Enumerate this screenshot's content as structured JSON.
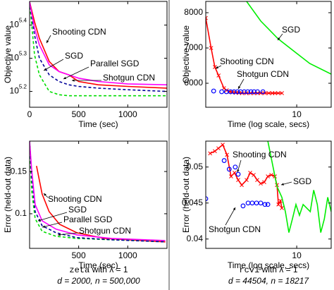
{
  "chart_data": [
    {
      "type": "line",
      "ylabel": "Objective value",
      "xlabel": "Time (sec)",
      "xlim": [
        0,
        1400
      ],
      "xticks": [
        0,
        500,
        1000
      ],
      "yscale": "log",
      "ylim": [
        142000,
        296000
      ],
      "yticks": [
        {
          "value": 158489,
          "label": "10^5.2"
        },
        {
          "value": 199526,
          "label": "10^5.3"
        },
        {
          "value": 251189,
          "label": "10^5.4"
        }
      ],
      "series": [
        {
          "name": "Shooting CDN",
          "color": "#ff0000",
          "x": [
            0,
            50,
            100,
            200,
            300,
            400,
            500,
            700,
            1000,
            1400
          ],
          "values": [
            295121,
            257040,
            229087,
            194984,
            181970,
            177828,
            169824,
            165959,
            164059,
            162181
          ]
        },
        {
          "name": "SGD",
          "color": "#00dd00",
          "linestyle": "dashed",
          "x": [
            0,
            50,
            100,
            200,
            300,
            400,
            500,
            700,
            1000,
            1400
          ],
          "values": [
            295121,
            204174,
            177828,
            158489,
            154882,
            153800,
            153800,
            153800,
            153800,
            153800
          ]
        },
        {
          "name": "Parallel SGD",
          "color": "#000099",
          "linestyle": "dashed",
          "x": [
            0,
            50,
            100,
            200,
            300,
            400,
            500,
            700,
            1000,
            1400
          ],
          "values": [
            295121,
            234423,
            199526,
            177828,
            169824,
            165959,
            164059,
            162181,
            160300,
            158489
          ]
        },
        {
          "name": "Shotgun CDN",
          "color": "#ff00ff",
          "x": [
            0,
            50,
            100,
            200,
            300,
            400,
            500,
            700,
            1000,
            1400
          ],
          "values": [
            295121,
            245471,
            218776,
            190546,
            181970,
            177828,
            173780,
            169824,
            167000,
            165959
          ]
        }
      ]
    },
    {
      "type": "line",
      "ylabel": "Objective value",
      "xlabel": "Time (log scale, secs)",
      "xscale": "log",
      "xlim": [
        2,
        18.4
      ],
      "xticks": [
        10
      ],
      "ylim": [
        5320,
        8320
      ],
      "yticks": [
        6000,
        7000,
        8000
      ],
      "series": [
        {
          "name": "Shooting CDN",
          "color": "#ff0000",
          "marker": "x",
          "x": [
            2,
            2.2,
            2.35,
            2.51,
            2.76,
            2.9,
            3.05,
            3.2,
            3.4,
            3.6,
            3.8,
            4.1,
            4.4,
            4.7,
            5.0,
            5.3,
            5.7,
            6.1,
            6.5,
            6.8,
            7.2,
            7.7
          ],
          "values": [
            7850,
            7000,
            6460,
            6220,
            5860,
            5800,
            5760,
            5740,
            5730,
            5725,
            5720,
            5720,
            5720,
            5720,
            5720,
            5720,
            5720,
            5720,
            5720,
            5720,
            5720,
            5720
          ]
        },
        {
          "name": "Shotgun CDN",
          "color": "#0000ff",
          "marker": "o",
          "line": false,
          "x": [
            2.3,
            2.65,
            2.88,
            3.1,
            3.3,
            3.5,
            3.7,
            3.95,
            4.2,
            4.45,
            4.7,
            5.0,
            5.5
          ],
          "values": [
            5780,
            5760,
            5760,
            5760,
            5760,
            5760,
            5760,
            5760,
            5760,
            5760,
            5760,
            5760,
            5760
          ]
        },
        {
          "name": "SGD",
          "color": "#00ee00",
          "x": [
            3.87,
            5.3,
            7.2,
            9.9,
            12.6,
            18.4
          ],
          "values": [
            8460,
            7760,
            7260,
            6860,
            6560,
            6260
          ]
        }
      ]
    },
    {
      "type": "line",
      "ylabel": "Error (held-out data)",
      "xlabel": "Time (sec)",
      "xlim": [
        0,
        1400
      ],
      "xticks": [
        500,
        1000
      ],
      "ylim": [
        0.059,
        0.186
      ],
      "yticks": [
        0.1,
        0.15
      ],
      "series": [
        {
          "name": "Shooting CDN",
          "color": "#ff0000",
          "x": [
            70,
            128,
            199,
            305,
            482,
            766,
            1383
          ],
          "values": [
            0.1567,
            0.1233,
            0.1025,
            0.0875,
            0.0775,
            0.0708,
            0.0667
          ]
        },
        {
          "name": "SGD",
          "color": "#00dd00",
          "linestyle": "dashed",
          "x": [
            0,
            21,
            57,
            128,
            270,
            482,
            837,
            1383
          ],
          "values": [
            0.1858,
            0.1275,
            0.0942,
            0.0792,
            0.0733,
            0.0708,
            0.0692,
            0.0675
          ]
        },
        {
          "name": "Parallel SGD",
          "color": "#000099",
          "linestyle": "dashed",
          "x": [
            0,
            21,
            57,
            128,
            270,
            482,
            837,
            1383
          ],
          "values": [
            0.1858,
            0.1442,
            0.1025,
            0.0858,
            0.0775,
            0.0717,
            0.0692,
            0.0667
          ]
        },
        {
          "name": "Shotgun CDN",
          "color": "#ff00ff",
          "x": [
            0,
            21,
            57,
            128,
            270,
            482,
            837,
            1383
          ],
          "values": [
            0.1858,
            0.1525,
            0.1108,
            0.0917,
            0.0817,
            0.075,
            0.0708,
            0.0683
          ]
        }
      ]
    },
    {
      "type": "line",
      "ylabel": "Error (held-out data)",
      "xlabel": "Time (log scale, secs)",
      "xscale": "log",
      "xlim": [
        2,
        18.4
      ],
      "xticks": [
        10
      ],
      "ylim": [
        0.0387,
        0.0536
      ],
      "yticks": [
        0.04,
        0.045,
        0.05
      ],
      "series": [
        {
          "name": "Shooting CDN",
          "color": "#ff0000",
          "marker": "x",
          "x": [
            2.16,
            2.35,
            2.5,
            2.7,
            2.91,
            3.13,
            3.33,
            3.55,
            3.78,
            4.12,
            4.39,
            4.67,
            4.97,
            5.29,
            5.63,
            6.0,
            6.38,
            6.79,
            7.05,
            7.23,
            7.5,
            7.69
          ],
          "values": [
            0.0519,
            0.0522,
            0.0526,
            0.0531,
            0.0517,
            0.0487,
            0.0492,
            0.0482,
            0.0475,
            0.0482,
            0.0492,
            0.0489,
            0.0482,
            0.0477,
            0.0479,
            0.0487,
            0.0489,
            0.0487,
            0.0475,
            0.0448,
            0.0453,
            0.0443
          ]
        },
        {
          "name": "Shotgun CDN",
          "color": "#0000ff",
          "marker": "o",
          "line": false,
          "x": [
            2.0,
            2.77,
            3.03,
            3.37,
            3.55,
            3.87,
            4.23,
            4.55,
            4.91,
            5.29,
            5.7,
            6.0
          ],
          "values": [
            0.0456,
            0.0509,
            0.0497,
            0.05,
            0.049,
            0.0446,
            0.045,
            0.045,
            0.045,
            0.045,
            0.0448,
            0.0448
          ]
        },
        {
          "name": "SGD",
          "color": "#00ee00",
          "x": [
            6.0,
            7.05,
            7.69,
            8.18,
            8.71,
            9.27,
            9.86,
            10.5,
            11.2,
            12.7,
            13.5,
            14.4,
            15.3,
            16.3,
            17.3,
            18.4
          ],
          "values": [
            0.0536,
            0.0473,
            0.0458,
            0.0438,
            0.0409,
            0.0428,
            0.0448,
            0.0433,
            0.0448,
            0.0438,
            0.0468,
            0.0448,
            0.0409,
            0.0428,
            0.0458,
            0.0438
          ]
        }
      ]
    }
  ],
  "captions": [
    {
      "dataset": "zeta",
      "text": "with λ = 1",
      "sizes": "d = 2000, n = 500,000"
    },
    {
      "dataset": "rcv1",
      "text": "with λ = 1",
      "sizes": "d = 44504, n = 18217"
    }
  ]
}
